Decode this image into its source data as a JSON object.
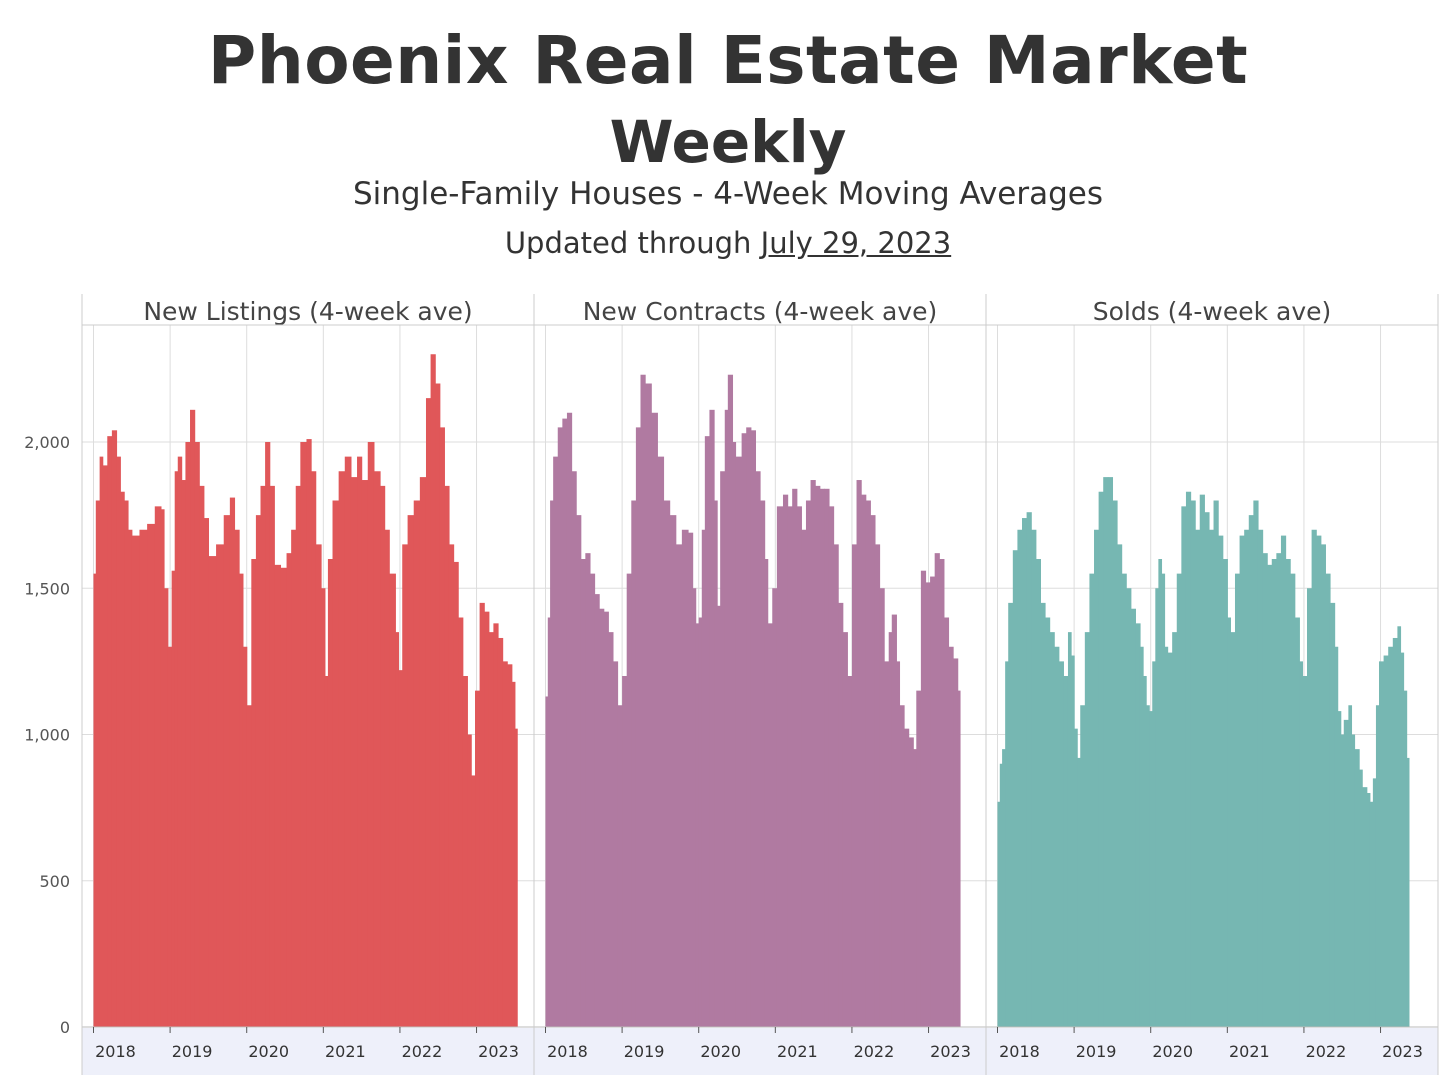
{
  "title": "Phoenix Real Estate Market",
  "subtitle": "Weekly",
  "subtitle2": "Single-Family Houses - 4-Week Moving Averages",
  "updated_prefix": "Updated through",
  "updated_date": "July 29, 2023",
  "chart_data": {
    "type": "bar",
    "y_ticks": [
      "0",
      "500",
      "1,000",
      "1,500",
      "2,000"
    ],
    "y_tick_values": [
      0,
      500,
      1000,
      1500,
      2000
    ],
    "ylim": [
      0,
      2400
    ],
    "x_ticks": [
      "2018",
      "2019",
      "2020",
      "2021",
      "2022",
      "2023"
    ],
    "x_tick_values": [
      2018,
      2019,
      2020,
      2021,
      2022,
      2023
    ],
    "xlim": [
      2017.85,
      2023.75
    ],
    "grid": true,
    "panels": [
      {
        "name": "New Listings (4-week ave)",
        "color": "#E05759",
        "points": [
          [
            2018.0,
            1550
          ],
          [
            2018.03,
            1800
          ],
          [
            2018.08,
            1950
          ],
          [
            2018.12,
            1920
          ],
          [
            2018.18,
            2020
          ],
          [
            2018.24,
            2040
          ],
          [
            2018.3,
            1950
          ],
          [
            2018.35,
            1830
          ],
          [
            2018.4,
            1800
          ],
          [
            2018.45,
            1700
          ],
          [
            2018.5,
            1680
          ],
          [
            2018.6,
            1700
          ],
          [
            2018.7,
            1720
          ],
          [
            2018.8,
            1780
          ],
          [
            2018.88,
            1770
          ],
          [
            2018.92,
            1500
          ],
          [
            2018.97,
            1300
          ],
          [
            2019.02,
            1560
          ],
          [
            2019.06,
            1900
          ],
          [
            2019.1,
            1950
          ],
          [
            2019.15,
            1870
          ],
          [
            2019.2,
            2000
          ],
          [
            2019.26,
            2110
          ],
          [
            2019.32,
            2000
          ],
          [
            2019.38,
            1850
          ],
          [
            2019.44,
            1740
          ],
          [
            2019.5,
            1610
          ],
          [
            2019.6,
            1650
          ],
          [
            2019.7,
            1750
          ],
          [
            2019.78,
            1810
          ],
          [
            2019.84,
            1700
          ],
          [
            2019.9,
            1550
          ],
          [
            2019.95,
            1300
          ],
          [
            2020.0,
            1100
          ],
          [
            2020.06,
            1600
          ],
          [
            2020.12,
            1750
          ],
          [
            2020.18,
            1850
          ],
          [
            2020.24,
            2000
          ],
          [
            2020.3,
            1850
          ],
          [
            2020.36,
            1580
          ],
          [
            2020.44,
            1570
          ],
          [
            2020.52,
            1620
          ],
          [
            2020.58,
            1700
          ],
          [
            2020.64,
            1850
          ],
          [
            2020.7,
            2000
          ],
          [
            2020.78,
            2010
          ],
          [
            2020.84,
            1900
          ],
          [
            2020.9,
            1650
          ],
          [
            2020.97,
            1500
          ],
          [
            2021.02,
            1200
          ],
          [
            2021.06,
            1600
          ],
          [
            2021.12,
            1800
          ],
          [
            2021.2,
            1900
          ],
          [
            2021.28,
            1950
          ],
          [
            2021.36,
            1880
          ],
          [
            2021.44,
            1950
          ],
          [
            2021.5,
            1870
          ],
          [
            2021.58,
            2000
          ],
          [
            2021.66,
            1900
          ],
          [
            2021.74,
            1850
          ],
          [
            2021.8,
            1700
          ],
          [
            2021.86,
            1550
          ],
          [
            2021.94,
            1350
          ],
          [
            2021.98,
            1220
          ],
          [
            2022.03,
            1650
          ],
          [
            2022.1,
            1750
          ],
          [
            2022.18,
            1800
          ],
          [
            2022.26,
            1880
          ],
          [
            2022.34,
            2150
          ],
          [
            2022.4,
            2300
          ],
          [
            2022.46,
            2200
          ],
          [
            2022.52,
            2050
          ],
          [
            2022.58,
            1850
          ],
          [
            2022.64,
            1650
          ],
          [
            2022.7,
            1590
          ],
          [
            2022.76,
            1400
          ],
          [
            2022.82,
            1200
          ],
          [
            2022.88,
            1000
          ],
          [
            2022.93,
            860
          ],
          [
            2022.98,
            1150
          ],
          [
            2023.04,
            1450
          ],
          [
            2023.1,
            1420
          ],
          [
            2023.16,
            1350
          ],
          [
            2023.22,
            1380
          ],
          [
            2023.28,
            1330
          ],
          [
            2023.34,
            1250
          ],
          [
            2023.4,
            1240
          ],
          [
            2023.46,
            1180
          ],
          [
            2023.5,
            1020
          ]
        ]
      },
      {
        "name": "New Contracts (4-week ave)",
        "color": "#B07AA1",
        "points": [
          [
            2018.0,
            1130
          ],
          [
            2018.03,
            1400
          ],
          [
            2018.06,
            1800
          ],
          [
            2018.1,
            1950
          ],
          [
            2018.16,
            2050
          ],
          [
            2018.22,
            2080
          ],
          [
            2018.28,
            2100
          ],
          [
            2018.34,
            1900
          ],
          [
            2018.4,
            1750
          ],
          [
            2018.46,
            1600
          ],
          [
            2018.52,
            1620
          ],
          [
            2018.58,
            1550
          ],
          [
            2018.64,
            1480
          ],
          [
            2018.7,
            1430
          ],
          [
            2018.76,
            1420
          ],
          [
            2018.82,
            1350
          ],
          [
            2018.88,
            1250
          ],
          [
            2018.94,
            1100
          ],
          [
            2019.0,
            1200
          ],
          [
            2019.06,
            1550
          ],
          [
            2019.12,
            1800
          ],
          [
            2019.18,
            2050
          ],
          [
            2019.24,
            2230
          ],
          [
            2019.3,
            2200
          ],
          [
            2019.38,
            2100
          ],
          [
            2019.46,
            1950
          ],
          [
            2019.54,
            1800
          ],
          [
            2019.62,
            1750
          ],
          [
            2019.7,
            1650
          ],
          [
            2019.78,
            1700
          ],
          [
            2019.86,
            1690
          ],
          [
            2019.92,
            1500
          ],
          [
            2019.96,
            1380
          ],
          [
            2020.0,
            1400
          ],
          [
            2020.04,
            1700
          ],
          [
            2020.08,
            2020
          ],
          [
            2020.14,
            2110
          ],
          [
            2020.2,
            1800
          ],
          [
            2020.24,
            1440
          ],
          [
            2020.28,
            1900
          ],
          [
            2020.34,
            2110
          ],
          [
            2020.38,
            2230
          ],
          [
            2020.44,
            2000
          ],
          [
            2020.48,
            1950
          ],
          [
            2020.56,
            2030
          ],
          [
            2020.62,
            2050
          ],
          [
            2020.68,
            2040
          ],
          [
            2020.74,
            1900
          ],
          [
            2020.8,
            1800
          ],
          [
            2020.86,
            1600
          ],
          [
            2020.9,
            1380
          ],
          [
            2020.96,
            1500
          ],
          [
            2021.02,
            1780
          ],
          [
            2021.1,
            1820
          ],
          [
            2021.16,
            1780
          ],
          [
            2021.22,
            1840
          ],
          [
            2021.28,
            1780
          ],
          [
            2021.34,
            1700
          ],
          [
            2021.4,
            1800
          ],
          [
            2021.46,
            1870
          ],
          [
            2021.52,
            1850
          ],
          [
            2021.58,
            1840
          ],
          [
            2021.64,
            1840
          ],
          [
            2021.7,
            1780
          ],
          [
            2021.76,
            1650
          ],
          [
            2021.82,
            1450
          ],
          [
            2021.88,
            1350
          ],
          [
            2021.94,
            1200
          ],
          [
            2022.0,
            1650
          ],
          [
            2022.06,
            1870
          ],
          [
            2022.12,
            1820
          ],
          [
            2022.18,
            1800
          ],
          [
            2022.24,
            1750
          ],
          [
            2022.3,
            1650
          ],
          [
            2022.36,
            1500
          ],
          [
            2022.42,
            1250
          ],
          [
            2022.48,
            1350
          ],
          [
            2022.52,
            1410
          ],
          [
            2022.58,
            1250
          ],
          [
            2022.62,
            1100
          ],
          [
            2022.68,
            1020
          ],
          [
            2022.74,
            990
          ],
          [
            2022.8,
            950
          ],
          [
            2022.84,
            1150
          ],
          [
            2022.9,
            1560
          ],
          [
            2022.96,
            1520
          ],
          [
            2023.02,
            1540
          ],
          [
            2023.08,
            1620
          ],
          [
            2023.14,
            1600
          ],
          [
            2023.2,
            1400
          ],
          [
            2023.26,
            1300
          ],
          [
            2023.32,
            1260
          ],
          [
            2023.38,
            1150
          ]
        ]
      },
      {
        "name": "Solds (4-week ave)",
        "color": "#76B7B2",
        "points": [
          [
            2018.0,
            770
          ],
          [
            2018.03,
            900
          ],
          [
            2018.06,
            950
          ],
          [
            2018.1,
            1250
          ],
          [
            2018.14,
            1450
          ],
          [
            2018.2,
            1630
          ],
          [
            2018.26,
            1700
          ],
          [
            2018.32,
            1740
          ],
          [
            2018.38,
            1760
          ],
          [
            2018.44,
            1700
          ],
          [
            2018.5,
            1600
          ],
          [
            2018.56,
            1450
          ],
          [
            2018.62,
            1400
          ],
          [
            2018.68,
            1350
          ],
          [
            2018.74,
            1300
          ],
          [
            2018.8,
            1250
          ],
          [
            2018.86,
            1200
          ],
          [
            2018.92,
            1350
          ],
          [
            2018.96,
            1270
          ],
          [
            2019.0,
            1020
          ],
          [
            2019.04,
            920
          ],
          [
            2019.08,
            1100
          ],
          [
            2019.14,
            1350
          ],
          [
            2019.2,
            1550
          ],
          [
            2019.26,
            1700
          ],
          [
            2019.32,
            1830
          ],
          [
            2019.38,
            1880
          ],
          [
            2019.44,
            1880
          ],
          [
            2019.5,
            1800
          ],
          [
            2019.56,
            1650
          ],
          [
            2019.62,
            1550
          ],
          [
            2019.68,
            1500
          ],
          [
            2019.74,
            1430
          ],
          [
            2019.8,
            1380
          ],
          [
            2019.86,
            1300
          ],
          [
            2019.9,
            1200
          ],
          [
            2019.94,
            1100
          ],
          [
            2019.98,
            1080
          ],
          [
            2020.02,
            1250
          ],
          [
            2020.06,
            1500
          ],
          [
            2020.1,
            1600
          ],
          [
            2020.14,
            1550
          ],
          [
            2020.18,
            1300
          ],
          [
            2020.22,
            1280
          ],
          [
            2020.28,
            1350
          ],
          [
            2020.34,
            1550
          ],
          [
            2020.4,
            1780
          ],
          [
            2020.46,
            1830
          ],
          [
            2020.52,
            1800
          ],
          [
            2020.58,
            1700
          ],
          [
            2020.64,
            1820
          ],
          [
            2020.7,
            1760
          ],
          [
            2020.76,
            1700
          ],
          [
            2020.82,
            1800
          ],
          [
            2020.88,
            1680
          ],
          [
            2020.94,
            1600
          ],
          [
            2021.0,
            1400
          ],
          [
            2021.04,
            1350
          ],
          [
            2021.1,
            1550
          ],
          [
            2021.16,
            1680
          ],
          [
            2021.22,
            1700
          ],
          [
            2021.28,
            1750
          ],
          [
            2021.34,
            1800
          ],
          [
            2021.4,
            1700
          ],
          [
            2021.46,
            1620
          ],
          [
            2021.52,
            1580
          ],
          [
            2021.58,
            1600
          ],
          [
            2021.64,
            1620
          ],
          [
            2021.7,
            1680
          ],
          [
            2021.76,
            1600
          ],
          [
            2021.82,
            1550
          ],
          [
            2021.88,
            1400
          ],
          [
            2021.94,
            1250
          ],
          [
            2021.98,
            1200
          ],
          [
            2022.04,
            1500
          ],
          [
            2022.1,
            1700
          ],
          [
            2022.16,
            1680
          ],
          [
            2022.22,
            1650
          ],
          [
            2022.28,
            1550
          ],
          [
            2022.34,
            1450
          ],
          [
            2022.4,
            1300
          ],
          [
            2022.44,
            1080
          ],
          [
            2022.48,
            1000
          ],
          [
            2022.52,
            1050
          ],
          [
            2022.58,
            1100
          ],
          [
            2022.62,
            1000
          ],
          [
            2022.66,
            950
          ],
          [
            2022.72,
            880
          ],
          [
            2022.76,
            820
          ],
          [
            2022.82,
            800
          ],
          [
            2022.86,
            770
          ],
          [
            2022.9,
            850
          ],
          [
            2022.94,
            1100
          ],
          [
            2022.98,
            1250
          ],
          [
            2023.04,
            1270
          ],
          [
            2023.1,
            1300
          ],
          [
            2023.16,
            1330
          ],
          [
            2023.22,
            1370
          ],
          [
            2023.26,
            1280
          ],
          [
            2023.3,
            1150
          ],
          [
            2023.34,
            920
          ]
        ]
      }
    ]
  }
}
